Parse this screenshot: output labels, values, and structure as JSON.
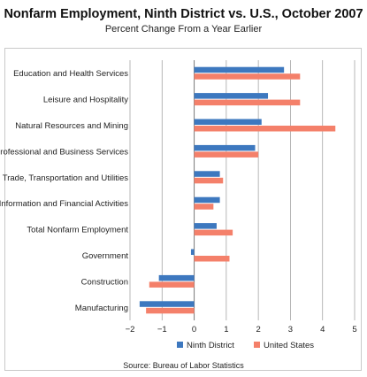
{
  "chart_data": {
    "type": "bar",
    "orientation": "horizontal",
    "title": "Nonfarm Employment, Ninth District vs. U.S., October 2007",
    "subtitle": "Percent Change From a Year Earlier",
    "categories": [
      "Education and Health Services",
      "Leisure and Hospitality",
      "Natural Resources and Mining",
      "Professional and Business Services",
      "Trade, Transportation and Utilities",
      "Information and Financial Activities",
      "Total Nonfarm Employment",
      "Government",
      "Construction",
      "Manufacturing"
    ],
    "series": [
      {
        "name": "Ninth District",
        "color": "#3d78bf",
        "values": [
          2.8,
          2.3,
          2.1,
          1.9,
          0.8,
          0.8,
          0.7,
          -0.1,
          -1.1,
          -1.7
        ]
      },
      {
        "name": "United States",
        "color": "#f4806a",
        "values": [
          3.3,
          3.3,
          4.4,
          2.0,
          0.9,
          0.6,
          1.2,
          1.1,
          -1.4,
          -1.5
        ]
      }
    ],
    "xlim": [
      -2,
      5
    ],
    "xticks": [
      -2,
      -1,
      0,
      1,
      2,
      3,
      4,
      5
    ],
    "xtick_labels": [
      "−2",
      "−1",
      "0",
      "1",
      "2",
      "3",
      "4",
      "5"
    ],
    "grid": "vertical",
    "legend_position": "bottom",
    "source": "Source: Bureau of Labor Statistics"
  }
}
